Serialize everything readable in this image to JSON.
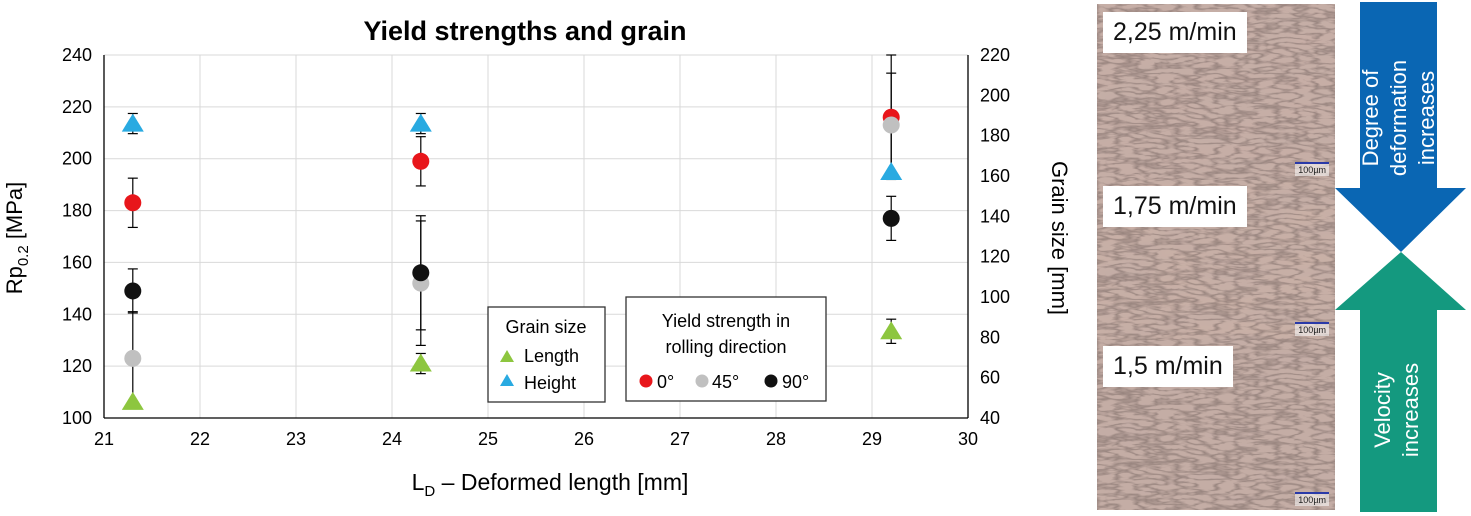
{
  "chart_data": {
    "type": "scatter",
    "title": "Yield strengths and grain",
    "xlabel_main": "L",
    "xlabel_sub": "D",
    "xlabel_rest": " – Deformed length [mm]",
    "ylabel_main": "Rp",
    "ylabel_sub": "0.2",
    "ylabel_rest": " [MPa]",
    "y2label": "Grain size [mm]",
    "xlim": [
      21,
      30
    ],
    "ylim": [
      100,
      240
    ],
    "y2lim": [
      40,
      220
    ],
    "xticks": [
      "21",
      "22",
      "23",
      "24",
      "25",
      "26",
      "27",
      "28",
      "29",
      "30"
    ],
    "yticks": [
      "100",
      "120",
      "140",
      "160",
      "180",
      "200",
      "220",
      "240"
    ],
    "y2ticks": [
      "40",
      "60",
      "80",
      "100",
      "120",
      "140",
      "160",
      "180",
      "200",
      "220"
    ],
    "grid": true,
    "yield_series": [
      {
        "name": "0°",
        "color": "#e8161b",
        "x": [
          21.3,
          24.3,
          29.2
        ],
        "y": [
          183,
          199,
          216
        ],
        "err": [
          9.5,
          9.5,
          24
        ]
      },
      {
        "name": "45°",
        "color": "#c0c0c0",
        "x": [
          21.3,
          24.3,
          29.2
        ],
        "y": [
          123,
          152,
          213
        ],
        "err": [
          18,
          24,
          20
        ]
      },
      {
        "name": "90°",
        "color": "#111111",
        "x": [
          21.3,
          24.3,
          29.2
        ],
        "y": [
          149,
          156,
          177
        ],
        "err": [
          8.5,
          22,
          8.5
        ]
      }
    ],
    "grain_series": [
      {
        "name": "Length",
        "color": "#8dc63f",
        "x": [
          21.3,
          24.3,
          29.2
        ],
        "y": [
          48,
          67,
          83
        ],
        "err": [
          0,
          5,
          6
        ]
      },
      {
        "name": "Height",
        "color": "#29aae1",
        "x": [
          21.3,
          24.3,
          29.2
        ],
        "y": [
          186,
          186,
          162
        ],
        "err": [
          5,
          5,
          0
        ]
      }
    ],
    "legend_grain": {
      "title": "Grain size",
      "items": [
        "Length",
        "Height"
      ]
    },
    "legend_yield": {
      "title_line1": "Yield strength in",
      "title_line2": "rolling direction",
      "items": [
        "0°",
        "45°",
        "90°"
      ]
    }
  },
  "micrographs": [
    {
      "label": "2,25 m/min",
      "scale": "100µm"
    },
    {
      "label": "1,75 m/min",
      "scale": "100µm"
    },
    {
      "label": "1,5 m/min",
      "scale": "100µm"
    }
  ],
  "arrows": {
    "deformation": {
      "line1": "Degree of",
      "line2": "deformation",
      "line3": "increases",
      "color": "#0a66b3"
    },
    "velocity": {
      "line1": "Velocity",
      "line2": "increases",
      "color": "#14997f"
    }
  }
}
